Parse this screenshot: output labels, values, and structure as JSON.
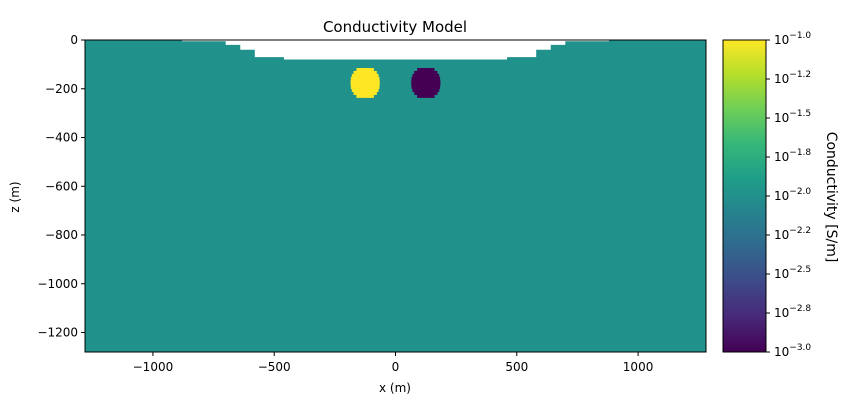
{
  "chart_data": {
    "type": "heatmap",
    "title": "Conductivity Model",
    "xlabel": "x (m)",
    "ylabel": "z (m)",
    "xlim": [
      -1280,
      1280
    ],
    "ylim": [
      -1280,
      0
    ],
    "xticks": [
      -1000,
      -500,
      0,
      500,
      1000
    ],
    "xtick_labels": [
      "−1000",
      "−500",
      "0",
      "500",
      "1000"
    ],
    "yticks": [
      0,
      -200,
      -400,
      -600,
      -800,
      -1000,
      -1200
    ],
    "ytick_labels": [
      "0",
      "−200",
      "−400",
      "−600",
      "−800",
      "−1000",
      "−1200"
    ],
    "background": {
      "conductivity": 0.01,
      "color": "#21918c"
    },
    "air_region": {
      "description_value": "no data (air)",
      "surface_profile": [
        {
          "x": -1280,
          "z": 0
        },
        {
          "x": -880,
          "z": 0
        },
        {
          "x": -880,
          "z": -5
        },
        {
          "x": -700,
          "z": -5
        },
        {
          "x": -700,
          "z": -20
        },
        {
          "x": -640,
          "z": -20
        },
        {
          "x": -640,
          "z": -40
        },
        {
          "x": -580,
          "z": -40
        },
        {
          "x": -580,
          "z": -70
        },
        {
          "x": -460,
          "z": -70
        },
        {
          "x": -460,
          "z": -80
        },
        {
          "x": 460,
          "z": -80
        },
        {
          "x": 460,
          "z": -70
        },
        {
          "x": 580,
          "z": -70
        },
        {
          "x": 580,
          "z": -40
        },
        {
          "x": 640,
          "z": -40
        },
        {
          "x": 640,
          "z": -20
        },
        {
          "x": 700,
          "z": -20
        },
        {
          "x": 700,
          "z": -5
        },
        {
          "x": 880,
          "z": -5
        },
        {
          "x": 880,
          "z": 0
        },
        {
          "x": 1280,
          "z": 0
        }
      ]
    },
    "anomalies": [
      {
        "name": "conductive-sphere",
        "x": -125,
        "z": -175,
        "radius": 60,
        "conductivity": 0.1,
        "color": "#fde725"
      },
      {
        "name": "resistive-sphere",
        "x": 125,
        "z": -175,
        "radius": 60,
        "conductivity": 0.001,
        "color": "#440154"
      }
    ],
    "colorbar": {
      "label": "Conductivity [S/m]",
      "scale": "log",
      "range": [
        0.001,
        0.1
      ],
      "colormap": "viridis",
      "tick_exponents": [
        "−1.0",
        "−1.2",
        "−1.5",
        "−1.8",
        "−2.0",
        "−2.2",
        "−2.5",
        "−2.8",
        "−3.0"
      ],
      "tick_base": "10",
      "colors": [
        "#440154",
        "#482878",
        "#3e4989",
        "#31688e",
        "#26828e",
        "#1f9e89",
        "#35b779",
        "#6ece58",
        "#b5de2b",
        "#fde725"
      ]
    }
  }
}
